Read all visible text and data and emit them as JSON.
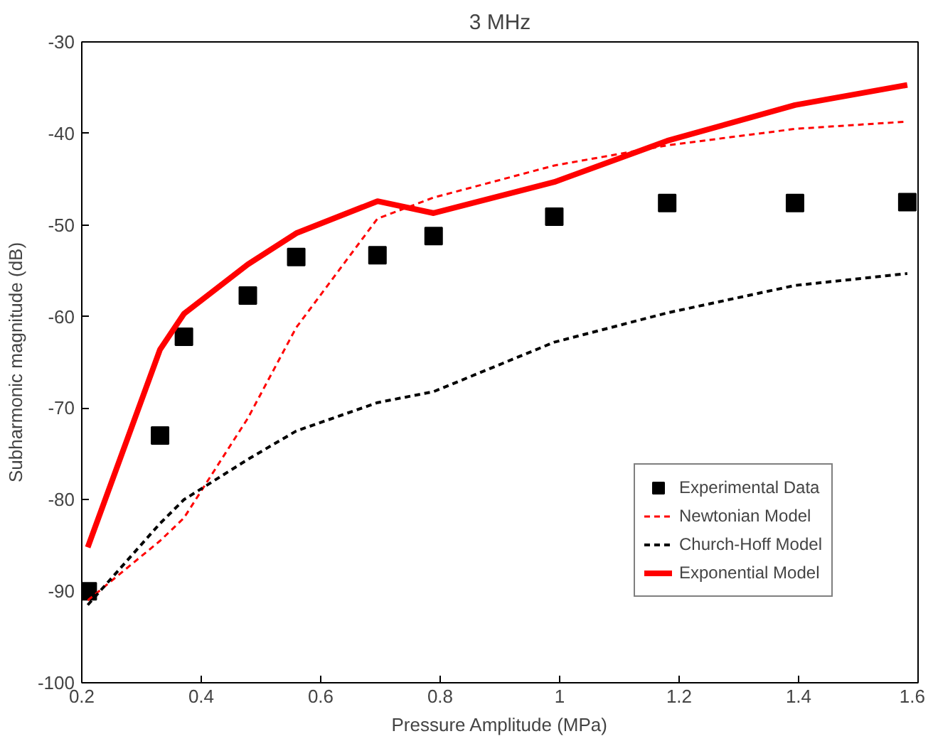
{
  "chart_data": {
    "type": "line",
    "title": "3 MHz",
    "xlabel": "Pressure Amplitude (MPa)",
    "ylabel": "Subharmonic magnitude (dB)",
    "x": [
      0.21,
      0.331,
      0.371,
      0.478,
      0.559,
      0.695,
      0.789,
      0.991,
      1.18,
      1.394,
      1.582
    ],
    "xlim": [
      0.2,
      1.6
    ],
    "xticks": [
      0.2,
      0.4,
      0.6,
      0.8,
      1,
      1.2,
      1.4,
      1.6
    ],
    "ylim": [
      -100,
      -30
    ],
    "yticks": [
      -100,
      -90,
      -80,
      -70,
      -60,
      -50,
      -40,
      -30
    ],
    "grid": false,
    "legend": "bottom right",
    "series": [
      {
        "name": "Experimental Data",
        "type": "scatter",
        "marker": "square",
        "color": "#000000",
        "values": [
          -90.0,
          -73.0,
          -62.2,
          -57.7,
          -53.5,
          -53.3,
          -51.2,
          -49.1,
          -47.6,
          -47.6,
          -47.5
        ]
      },
      {
        "name": "Newtonian Model",
        "color": "#ff0000",
        "line_style": "dashed",
        "values": [
          -91.0,
          -84.5,
          -82.0,
          -71.1,
          -61.2,
          -49.3,
          -47.0,
          -43.5,
          -41.3,
          -39.5,
          -38.7
        ]
      },
      {
        "name": "Church-Hoff Model",
        "color": "#000000",
        "line_style": "dashed",
        "values": [
          -91.5,
          -82.6,
          -80.0,
          -75.6,
          -72.5,
          -69.4,
          -68.2,
          -62.8,
          -59.6,
          -56.6,
          -55.3
        ]
      },
      {
        "name": "Exponential Model",
        "color": "#ff0000",
        "line_style": "solid",
        "values": [
          -85.2,
          -63.6,
          -59.7,
          -54.3,
          -50.9,
          -47.4,
          -48.7,
          -45.3,
          -40.8,
          -36.9,
          -34.7
        ]
      }
    ]
  }
}
